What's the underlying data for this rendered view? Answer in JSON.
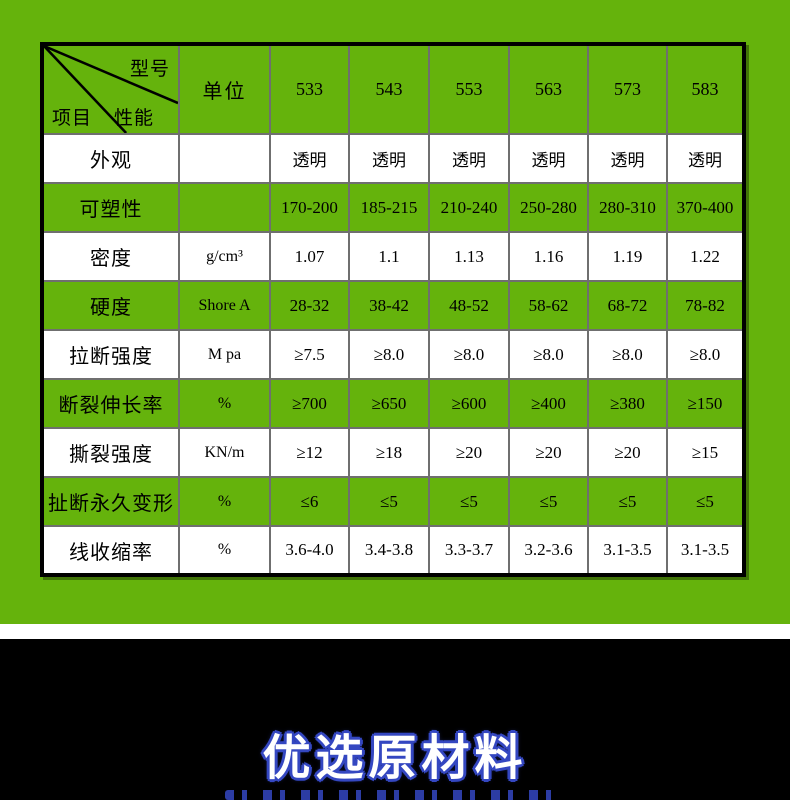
{
  "colors": {
    "page_green": "#65b30c",
    "grid_line": "#6f6f6f",
    "table_border": "#000000",
    "row_white": "#ffffff",
    "table_text": "#000000",
    "banner_background": "#000000",
    "banner_text": "#ffffff",
    "banner_outline": "#3447c1"
  },
  "spec_table": {
    "corner": {
      "top_right_label": "型号",
      "middle_label": "性能",
      "bottom_left_label": "项目"
    },
    "unit_column_header": "单位",
    "model_numbers": [
      "533",
      "543",
      "553",
      "563",
      "573",
      "583"
    ],
    "rows": [
      {
        "label": "外观",
        "unit": "",
        "tone": "white",
        "values": [
          "透明",
          "透明",
          "透明",
          "透明",
          "透明",
          "透明"
        ]
      },
      {
        "label": "可塑性",
        "unit": "",
        "tone": "green",
        "values": [
          "170-200",
          "185-215",
          "210-240",
          "250-280",
          "280-310",
          "370-400"
        ]
      },
      {
        "label": "密度",
        "unit": "g/cm³",
        "tone": "white",
        "values": [
          "1.07",
          "1.1",
          "1.13",
          "1.16",
          "1.19",
          "1.22"
        ]
      },
      {
        "label": "硬度",
        "unit": "Shore A",
        "tone": "green",
        "values": [
          "28-32",
          "38-42",
          "48-52",
          "58-62",
          "68-72",
          "78-82"
        ]
      },
      {
        "label": "拉断强度",
        "unit": "M pa",
        "tone": "white",
        "values": [
          "≥7.5",
          "≥8.0",
          "≥8.0",
          "≥8.0",
          "≥8.0",
          "≥8.0"
        ]
      },
      {
        "label": "断裂伸长率",
        "unit": "%",
        "tone": "green",
        "values": [
          "≥700",
          "≥650",
          "≥600",
          "≥400",
          "≥380",
          "≥150"
        ]
      },
      {
        "label": "撕裂强度",
        "unit": "KN/m",
        "tone": "white",
        "values": [
          "≥12",
          "≥18",
          "≥20",
          "≥20",
          "≥20",
          "≥15"
        ]
      },
      {
        "label": "扯断永久变形",
        "unit": "%",
        "tone": "green",
        "values": [
          "≤6",
          "≤5",
          "≤5",
          "≤5",
          "≤5",
          "≤5"
        ]
      },
      {
        "label": "线收缩率",
        "unit": "%",
        "tone": "white",
        "values": [
          "3.6-4.0",
          "3.4-3.8",
          "3.3-3.7",
          "3.2-3.6",
          "3.1-3.5",
          "3.1-3.5"
        ]
      }
    ]
  },
  "banner": {
    "headline": "优选原材料"
  }
}
